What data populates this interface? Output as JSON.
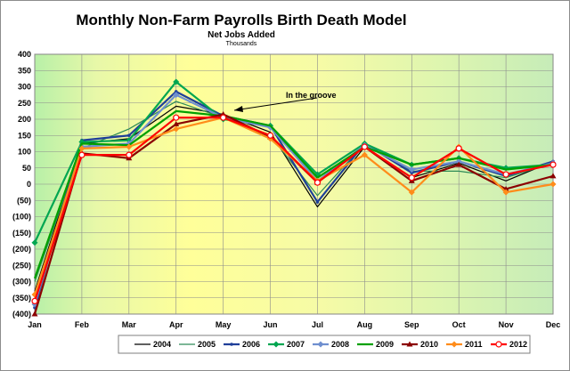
{
  "chart_data": {
    "type": "line",
    "title": "Monthly Non-Farm Payrolls Birth Death Model",
    "subtitle": "Net Jobs Added",
    "units": "Thousands",
    "categories": [
      "Jan",
      "Feb",
      "Mar",
      "Apr",
      "May",
      "Jun",
      "Jul",
      "Aug",
      "Sep",
      "Oct",
      "Nov",
      "Dec"
    ],
    "ylim": [
      -400,
      400
    ],
    "yticks": [
      "400",
      "350",
      "300",
      "250",
      "200",
      "150",
      "100",
      "50",
      "0",
      "(50)",
      "(100)",
      "(150)",
      "(200)",
      "(250)",
      "(300)",
      "(350)",
      "(400)"
    ],
    "grid": true,
    "legend_position": "bottom",
    "annotation": "In the groove",
    "series": [
      {
        "name": "2004",
        "color": "#000000",
        "marker": "none",
        "values": [
          -330,
          125,
          140,
          240,
          215,
          160,
          -70,
          115,
          20,
          65,
          10,
          70
        ]
      },
      {
        "name": "2005",
        "color": "#2e8b57",
        "marker": "none",
        "values": [
          -300,
          110,
          170,
          255,
          205,
          150,
          -35,
          125,
          40,
          40,
          20,
          65
        ]
      },
      {
        "name": "2006",
        "color": "#1f3f99",
        "marker": "dot",
        "values": [
          -380,
          135,
          150,
          285,
          210,
          180,
          -55,
          125,
          35,
          70,
          25,
          70
        ]
      },
      {
        "name": "2007",
        "color": "#00a651",
        "marker": "diamond",
        "values": [
          -180,
          130,
          135,
          315,
          200,
          180,
          30,
          125,
          60,
          80,
          50,
          60
        ]
      },
      {
        "name": "2008",
        "color": "#6f8fcf",
        "marker": "diamond",
        "values": [
          -370,
          115,
          125,
          275,
          205,
          175,
          10,
          120,
          45,
          70,
          30,
          65
        ]
      },
      {
        "name": "2009",
        "color": "#00a000",
        "marker": "none",
        "values": [
          -290,
          125,
          120,
          225,
          210,
          180,
          20,
          115,
          60,
          80,
          45,
          60
        ]
      },
      {
        "name": "2010",
        "color": "#8b0000",
        "marker": "triangle",
        "values": [
          -400,
          95,
          80,
          185,
          215,
          145,
          5,
          115,
          10,
          60,
          -15,
          25
        ]
      },
      {
        "name": "2011",
        "color": "#ff8c1a",
        "marker": "diamond",
        "values": [
          -340,
          110,
          115,
          170,
          205,
          140,
          10,
          90,
          -25,
          115,
          -25,
          0
        ]
      },
      {
        "name": "2012",
        "color": "#ff0000",
        "marker": "circle",
        "values": [
          -360,
          90,
          90,
          205,
          205,
          150,
          5,
          115,
          20,
          110,
          30,
          60
        ]
      }
    ]
  }
}
